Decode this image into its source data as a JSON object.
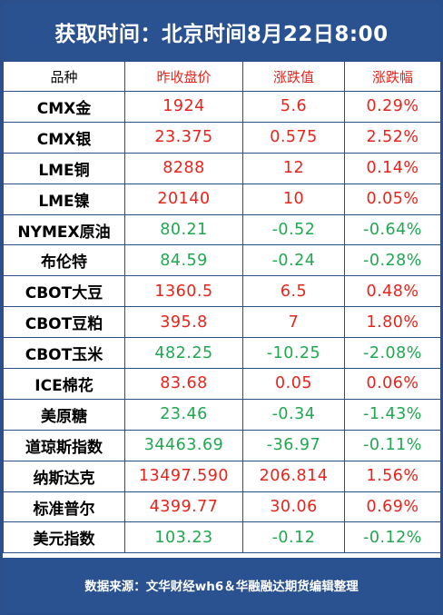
{
  "header": {
    "title": "获取时间：北京时间8月22日8:00"
  },
  "columns": [
    "品种",
    "昨收盘价",
    "涨跌值",
    "涨跌幅"
  ],
  "rows": [
    {
      "name": "CMX金",
      "close": "1924",
      "change": "5.6",
      "pct": "0.29%",
      "direction": "up"
    },
    {
      "name": "CMX银",
      "close": "23.375",
      "change": "0.575",
      "pct": "2.52%",
      "direction": "up"
    },
    {
      "name": "LME铜",
      "close": "8288",
      "change": "12",
      "pct": "0.14%",
      "direction": "up"
    },
    {
      "name": "LME镍",
      "close": "20140",
      "change": "10",
      "pct": "0.05%",
      "direction": "up"
    },
    {
      "name": "NYMEX原油",
      "close": "80.21",
      "change": "-0.52",
      "pct": "-0.64%",
      "direction": "down"
    },
    {
      "name": "布伦特",
      "close": "84.59",
      "change": "-0.24",
      "pct": "-0.28%",
      "direction": "down"
    },
    {
      "name": "CBOT大豆",
      "close": "1360.5",
      "change": "6.5",
      "pct": "0.48%",
      "direction": "up"
    },
    {
      "name": "CBOT豆粕",
      "close": "395.8",
      "change": "7",
      "pct": "1.80%",
      "direction": "up"
    },
    {
      "name": "CBOT玉米",
      "close": "482.25",
      "change": "-10.25",
      "pct": "-2.08%",
      "direction": "down"
    },
    {
      "name": "ICE棉花",
      "close": "83.68",
      "change": "0.05",
      "pct": "0.06%",
      "direction": "up"
    },
    {
      "name": "美原糖",
      "close": "23.46",
      "change": "-0.34",
      "pct": "-1.43%",
      "direction": "down"
    },
    {
      "name": "道琼斯指数",
      "close": "34463.69",
      "change": "-36.97",
      "pct": "-0.11%",
      "direction": "down"
    },
    {
      "name": "纳斯达克",
      "close": "13497.590",
      "change": "206.814",
      "pct": "1.56%",
      "direction": "up"
    },
    {
      "name": "标准普尔",
      "close": "4399.77",
      "change": "30.06",
      "pct": "0.69%",
      "direction": "up"
    },
    {
      "name": "美元指数",
      "close": "103.23",
      "change": "-0.12",
      "pct": "-0.12%",
      "direction": "down"
    }
  ],
  "footer": {
    "text": "数据来源：文华财经wh6＆华融融达期货编辑整理"
  },
  "colors": {
    "up": "#e8231b",
    "down": "#1fa84f",
    "brand": "#2b5290"
  }
}
